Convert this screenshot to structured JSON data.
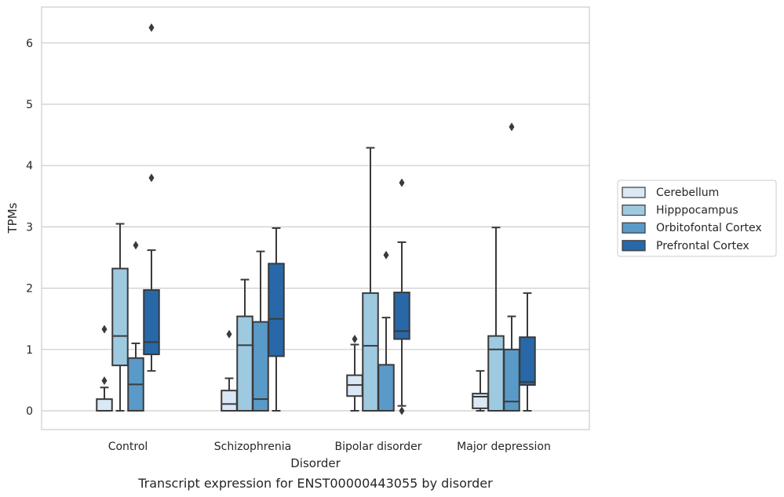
{
  "chart_data": {
    "type": "box",
    "title": "",
    "caption": "Transcript expression for ENST00000443055 by disorder",
    "xlabel": "Disorder",
    "ylabel": "TPMs",
    "ylim": [
      -0.3,
      6.58
    ],
    "yticks": [
      0,
      1,
      2,
      3,
      4,
      5,
      6
    ],
    "grid": "horizontal",
    "legend_position": "right",
    "categories": [
      "Control",
      "Schizophrenia",
      "Bipolar disorder",
      "Major depression"
    ],
    "series": [
      {
        "name": "Cerebellum",
        "color": "#dae8f5",
        "boxes": [
          {
            "whisker_low": 0,
            "q1": 0,
            "median": 0,
            "q3": 0.19,
            "whisker_high": 0.38,
            "outliers": [
              0.49,
              1.33
            ]
          },
          {
            "whisker_low": 0,
            "q1": 0,
            "median": 0.11,
            "q3": 0.33,
            "whisker_high": 0.53,
            "outliers": [
              1.25
            ]
          },
          {
            "whisker_low": 0,
            "q1": 0.24,
            "median": 0.42,
            "q3": 0.58,
            "whisker_high": 1.08,
            "outliers": [
              1.17
            ]
          },
          {
            "whisker_low": 0,
            "q1": 0.04,
            "median": 0.23,
            "q3": 0.28,
            "whisker_high": 0.65,
            "outliers": []
          }
        ]
      },
      {
        "name": "Hipppocampus",
        "color": "#9ecae1",
        "boxes": [
          {
            "whisker_low": 0,
            "q1": 0.74,
            "median": 1.22,
            "q3": 2.32,
            "whisker_high": 3.05,
            "outliers": []
          },
          {
            "whisker_low": 0,
            "q1": 0,
            "median": 1.07,
            "q3": 1.54,
            "whisker_high": 2.14,
            "outliers": []
          },
          {
            "whisker_low": 0,
            "q1": 0,
            "median": 1.06,
            "q3": 1.92,
            "whisker_high": 4.29,
            "outliers": []
          },
          {
            "whisker_low": 0,
            "q1": 0,
            "median": 1.0,
            "q3": 1.22,
            "whisker_high": 2.99,
            "outliers": []
          }
        ]
      },
      {
        "name": "Orbitofontal Cortex",
        "color": "#5a9ac9",
        "boxes": [
          {
            "whisker_low": 0,
            "q1": 0,
            "median": 0.43,
            "q3": 0.86,
            "whisker_high": 1.1,
            "outliers": [
              2.7
            ]
          },
          {
            "whisker_low": 0,
            "q1": 0,
            "median": 0.19,
            "q3": 1.45,
            "whisker_high": 2.6,
            "outliers": []
          },
          {
            "whisker_low": 0,
            "q1": 0,
            "median": 0,
            "q3": 0.75,
            "whisker_high": 1.52,
            "outliers": [
              2.54
            ]
          },
          {
            "whisker_low": 0,
            "q1": 0,
            "median": 0.15,
            "q3": 1.0,
            "whisker_high": 1.54,
            "outliers": [
              4.63
            ]
          }
        ]
      },
      {
        "name": "Prefrontal Cortex",
        "color": "#2868a8",
        "boxes": [
          {
            "whisker_low": 0.65,
            "q1": 0.92,
            "median": 1.12,
            "q3": 1.97,
            "whisker_high": 2.62,
            "outliers": [
              3.8,
              6.25
            ]
          },
          {
            "whisker_low": 0,
            "q1": 0.89,
            "median": 1.5,
            "q3": 2.4,
            "whisker_high": 2.98,
            "outliers": []
          },
          {
            "whisker_low": 0.08,
            "q1": 1.17,
            "median": 1.3,
            "q3": 1.93,
            "whisker_high": 2.75,
            "outliers": [
              0,
              3.72
            ]
          },
          {
            "whisker_low": 0,
            "q1": 0.42,
            "median": 0.47,
            "q3": 1.2,
            "whisker_high": 1.92,
            "outliers": []
          }
        ]
      }
    ]
  }
}
